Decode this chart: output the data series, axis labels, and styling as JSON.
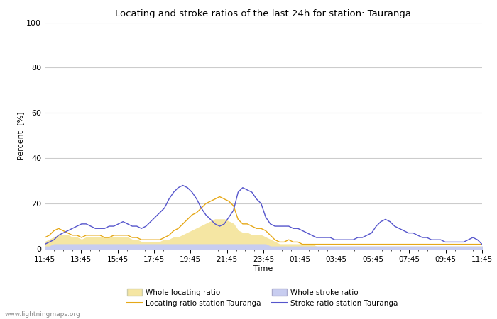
{
  "title": "Locating and stroke ratios of the last 24h for station: Tauranga",
  "xlabel": "Time",
  "ylabel": "Percent  [%]",
  "ylim": [
    0,
    100
  ],
  "yticks": [
    0,
    20,
    40,
    60,
    80,
    100
  ],
  "x_labels": [
    "11:45",
    "13:45",
    "15:45",
    "17:45",
    "19:45",
    "21:45",
    "23:45",
    "01:45",
    "03:45",
    "05:45",
    "07:45",
    "09:45",
    "11:45"
  ],
  "watermark": "www.lightningmaps.org",
  "whole_locating_ratio": [
    3,
    4,
    5,
    6,
    6,
    6,
    5,
    5,
    4,
    5,
    5,
    5,
    5,
    5,
    5,
    5,
    5,
    5,
    5,
    4,
    4,
    3,
    3,
    3,
    3,
    3,
    4,
    4,
    5,
    5,
    6,
    7,
    8,
    9,
    10,
    11,
    12,
    13,
    13,
    13,
    12,
    11,
    8,
    7,
    7,
    6,
    6,
    6,
    5,
    4,
    3,
    2,
    2,
    2,
    2,
    2,
    2,
    2,
    2,
    1,
    1,
    1,
    1,
    1,
    1,
    1,
    1,
    1,
    1,
    1,
    1,
    1,
    1,
    1,
    1,
    1,
    1,
    1,
    1,
    1,
    1,
    1,
    1,
    1,
    1,
    1,
    1,
    1,
    1,
    1,
    1,
    1,
    1,
    1,
    1,
    1
  ],
  "locating_ratio_station": [
    5,
    6,
    8,
    9,
    8,
    7,
    6,
    6,
    5,
    6,
    6,
    6,
    6,
    5,
    5,
    6,
    6,
    6,
    6,
    5,
    5,
    4,
    4,
    4,
    4,
    4,
    5,
    6,
    8,
    9,
    11,
    13,
    15,
    16,
    18,
    20,
    21,
    22,
    23,
    22,
    21,
    19,
    13,
    11,
    11,
    10,
    9,
    9,
    8,
    6,
    4,
    3,
    3,
    4,
    3,
    3,
    2,
    2,
    2,
    2,
    2,
    2,
    2,
    2,
    2,
    2,
    2,
    2,
    2,
    2,
    2,
    2,
    2,
    2,
    2,
    2,
    2,
    2,
    2,
    2,
    2,
    2,
    2,
    2,
    2,
    2,
    2,
    2,
    2,
    2,
    2,
    2,
    2,
    2,
    2,
    2
  ],
  "whole_stroke_ratio": [
    1,
    1,
    2,
    2,
    2,
    2,
    2,
    2,
    2,
    2,
    2,
    2,
    2,
    2,
    2,
    2,
    2,
    2,
    2,
    2,
    2,
    2,
    2,
    2,
    2,
    2,
    2,
    2,
    2,
    2,
    2,
    2,
    2,
    2,
    2,
    2,
    2,
    2,
    2,
    2,
    2,
    2,
    2,
    2,
    2,
    2,
    2,
    2,
    2,
    1,
    1,
    1,
    1,
    1,
    1,
    1,
    1,
    1,
    1,
    1,
    1,
    1,
    1,
    1,
    1,
    1,
    1,
    1,
    1,
    1,
    1,
    1,
    1,
    1,
    1,
    1,
    1,
    1,
    1,
    1,
    1,
    1,
    1,
    1,
    1,
    1,
    1,
    1,
    1,
    1,
    1,
    1,
    1,
    1,
    1,
    1
  ],
  "stroke_ratio_station": [
    2,
    3,
    4,
    6,
    7,
    8,
    9,
    10,
    11,
    11,
    10,
    9,
    9,
    9,
    10,
    10,
    11,
    12,
    11,
    10,
    10,
    9,
    10,
    12,
    14,
    16,
    18,
    22,
    25,
    27,
    28,
    27,
    25,
    22,
    18,
    15,
    13,
    11,
    10,
    11,
    14,
    17,
    25,
    27,
    26,
    25,
    22,
    20,
    14,
    11,
    10,
    10,
    10,
    10,
    9,
    9,
    8,
    7,
    6,
    5,
    5,
    5,
    5,
    4,
    4,
    4,
    4,
    4,
    5,
    5,
    6,
    7,
    10,
    12,
    13,
    12,
    10,
    9,
    8,
    7,
    7,
    6,
    5,
    5,
    4,
    4,
    4,
    3,
    3,
    3,
    3,
    3,
    4,
    5,
    4,
    2
  ]
}
